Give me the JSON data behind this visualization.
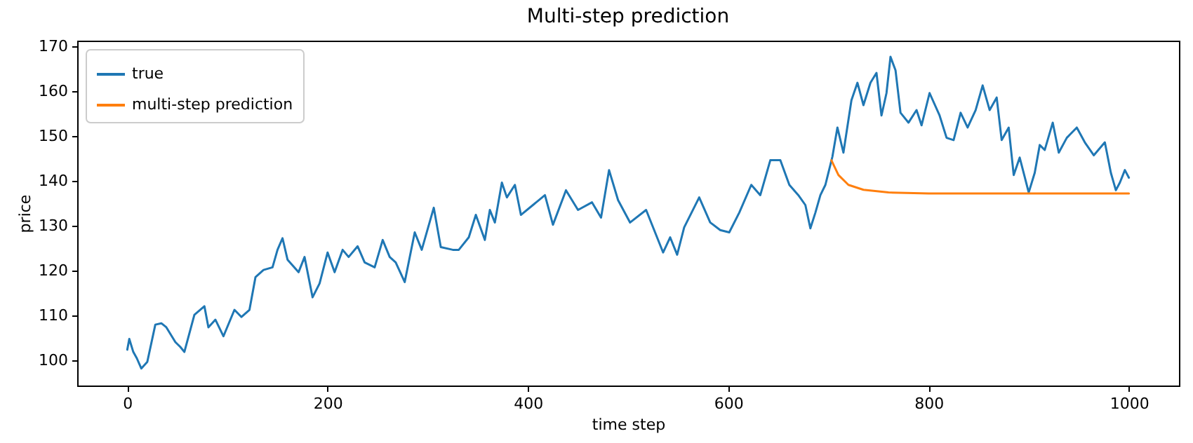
{
  "chart_data": {
    "type": "line",
    "title": "Multi-step prediction",
    "xlabel": "time step",
    "ylabel": "price",
    "xlim": [
      -50,
      1050
    ],
    "xticks": [
      0,
      200,
      400,
      600,
      800,
      1000
    ],
    "ylim": [
      94.3,
      171.3
    ],
    "yticks": [
      100,
      110,
      120,
      130,
      140,
      150,
      160,
      170
    ],
    "grid": false,
    "legend": "top left",
    "line_style": "solid",
    "marker": "none",
    "series": [
      {
        "name": "true",
        "color": "#1f77b4",
        "x": [
          0,
          2,
          6,
          9.5,
          14,
          20,
          28,
          34,
          39,
          48,
          53,
          57,
          67,
          77,
          81,
          88,
          96,
          107,
          114,
          122,
          128,
          136,
          145,
          150,
          155,
          160,
          171,
          177,
          185,
          192,
          200,
          207,
          215,
          221,
          230,
          237,
          247,
          255,
          262,
          268,
          277,
          287,
          294,
          306,
          313,
          325,
          331,
          341,
          348,
          357,
          362,
          367,
          374,
          379,
          387,
          393,
          405,
          417,
          425,
          438,
          450,
          464,
          473,
          481,
          490,
          502,
          518,
          535,
          542,
          549,
          556,
          571,
          582,
          592,
          601,
          611,
          623,
          632,
          642,
          652,
          661,
          670,
          677,
          682,
          687,
          692,
          697,
          704,
          709,
          715,
          723,
          729,
          735,
          742,
          748,
          753,
          758,
          762,
          767,
          772,
          780,
          788,
          793,
          801,
          811,
          818,
          825,
          832,
          839,
          847,
          854,
          861,
          868,
          873,
          880,
          885,
          891,
          900,
          906,
          911,
          916,
          924,
          930,
          938,
          948,
          956,
          965,
          976,
          982,
          987,
          991,
          996,
          1000
        ],
        "values": [
          102.3,
          104.7,
          101.8,
          100.4,
          98.1,
          99.6,
          107.9,
          108.2,
          107.3,
          104,
          102.9,
          101.8,
          110.1,
          112,
          107.3,
          109,
          105.3,
          111.2,
          109.6,
          111.2,
          118.5,
          120.1,
          120.7,
          124.6,
          127.2,
          122.4,
          119.6,
          123,
          114,
          117.1,
          124,
          119.6,
          124.6,
          123,
          125.4,
          121.8,
          120.7,
          126.8,
          123,
          121.8,
          117.4,
          128.5,
          124.6,
          134,
          125.2,
          124.6,
          124.6,
          127.4,
          132.4,
          126.8,
          133.5,
          130.7,
          139.6,
          136.3,
          139.1,
          132.4,
          134.6,
          136.8,
          130.2,
          137.9,
          133.5,
          135.2,
          131.8,
          142.4,
          135.7,
          130.7,
          133.5,
          124,
          127.4,
          123.5,
          129.6,
          136.3,
          130.7,
          129,
          128.5,
          132.9,
          139.1,
          136.8,
          144.6,
          144.6,
          139.1,
          136.8,
          134.6,
          129.4,
          132.9,
          136.8,
          139.1,
          145.4,
          151.9,
          146.3,
          158,
          161.9,
          156.9,
          161.9,
          164.1,
          154.6,
          159.6,
          167.7,
          164.7,
          155.2,
          153,
          155.8,
          152.4,
          159.6,
          154.6,
          149.6,
          149.1,
          155.2,
          151.9,
          155.8,
          161.3,
          155.8,
          158.6,
          149.1,
          151.9,
          141.3,
          145.2,
          137.4,
          141.8,
          148,
          146.9,
          153,
          146.3,
          149.6,
          151.9,
          148.6,
          145.7,
          148.6,
          141.8,
          137.9,
          139.6,
          142.4,
          140.7
        ]
      },
      {
        "name": "multi-step prediction",
        "color": "#ff7f0e",
        "x": [
          703,
          710,
          720,
          735,
          760,
          800,
          900,
          1000
        ],
        "values": [
          144.6,
          141.3,
          139.1,
          138,
          137.4,
          137.2,
          137.2,
          137.2
        ]
      }
    ]
  }
}
